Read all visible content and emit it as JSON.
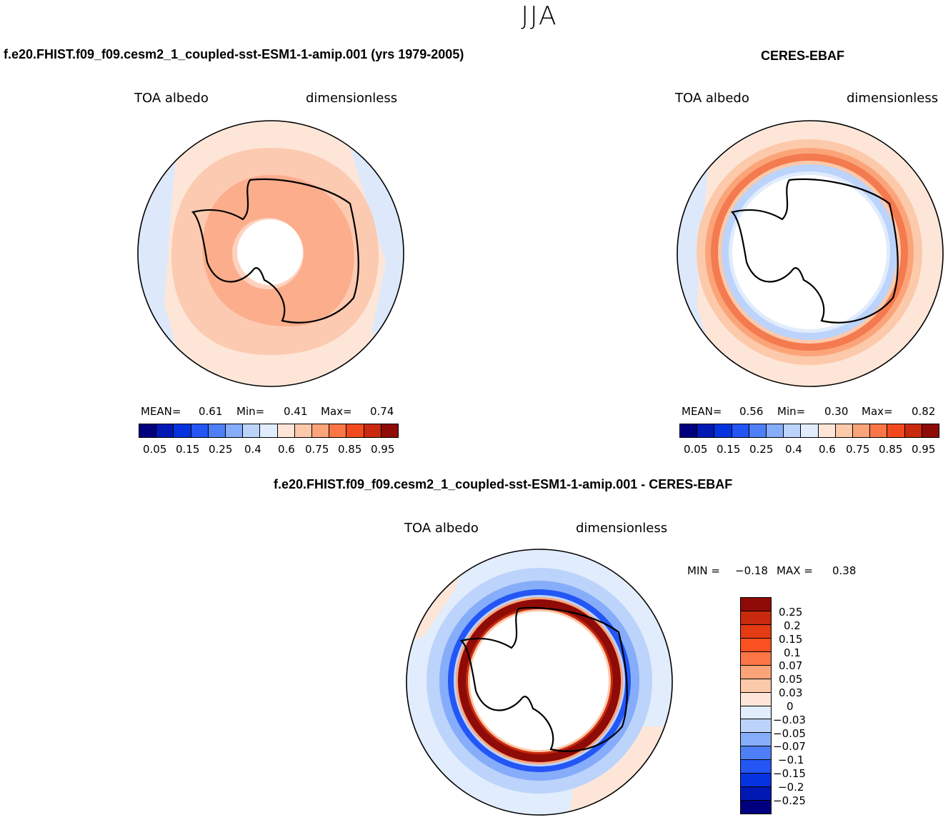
{
  "figure": {
    "season": "JJA"
  },
  "panels": {
    "model": {
      "title": "f.e20.FHIST.f09_f09.cesm2_1_coupled-sst-ESM1-1-amip.001 (yrs 1979-2005)",
      "variable": "TOA albedo",
      "units": "dimensionless",
      "stats": {
        "mean_label": "MEAN=",
        "mean": "0.61",
        "min_label": "Min=",
        "min": "0.41",
        "max_label": "Max=",
        "max": "0.74"
      }
    },
    "obs": {
      "title": "CERES-EBAF",
      "variable": "TOA albedo",
      "units": "dimensionless",
      "stats": {
        "mean_label": "MEAN=",
        "mean": "0.56",
        "min_label": "Min=",
        "min": "0.30",
        "max_label": "Max=",
        "max": "0.82"
      }
    },
    "diff": {
      "title": "f.e20.FHIST.f09_f09.cesm2_1_coupled-sst-ESM1-1-amip.001 - CERES-EBAF",
      "variable": "TOA albedo",
      "units": "dimensionless",
      "stats": {
        "min_label": "MIN =",
        "min": "−0.18",
        "max_label": "MAX =",
        "max": "0.38"
      }
    }
  },
  "colorbar_abs": {
    "colors": [
      "#00007f",
      "#0018b4",
      "#0633e0",
      "#2356f5",
      "#4f7ff7",
      "#86adf9",
      "#bcd3fb",
      "#e1ecfc",
      "#fde6d8",
      "#fcc9aa",
      "#fca479",
      "#fb7647",
      "#f24a1e",
      "#c92a0e",
      "#8f0b07"
    ],
    "tick_labels": [
      "0.05",
      "0.15",
      "0.25",
      "0.4",
      "0.6",
      "0.75",
      "0.85",
      "0.95"
    ]
  },
  "colorbar_diff": {
    "colors": [
      "#8f0b07",
      "#c92a0e",
      "#e43b12",
      "#fb5020",
      "#fb7647",
      "#fca479",
      "#fcc9aa",
      "#fde6d8",
      "#e1ecfc",
      "#bcd3fb",
      "#86adf9",
      "#4f7ff7",
      "#2356f5",
      "#0633e0",
      "#0018b4",
      "#00007f"
    ],
    "tick_labels": [
      "0.25",
      "0.2",
      "0.15",
      "0.1",
      "0.07",
      "0.05",
      "0.03",
      "0",
      "−0.03",
      "−0.05",
      "−0.07",
      "−0.1",
      "−0.15",
      "−0.2",
      "−0.25"
    ]
  }
}
